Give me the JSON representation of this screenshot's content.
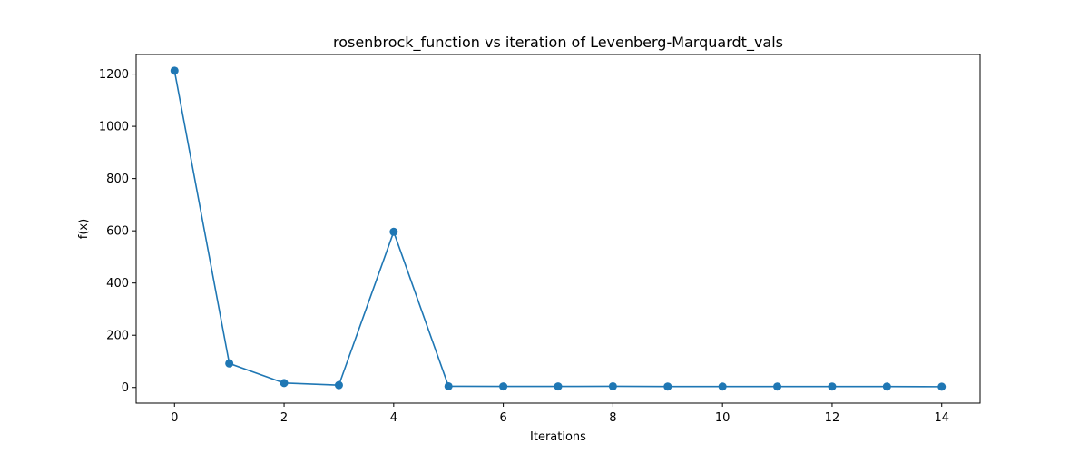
{
  "chart_data": {
    "type": "line",
    "title": "rosenbrock_function vs iteration of Levenberg-Marquardt_vals",
    "xlabel": "Iterations",
    "ylabel": "f(x)",
    "x": [
      0,
      1,
      2,
      3,
      4,
      5,
      6,
      7,
      8,
      9,
      10,
      11,
      12,
      13,
      14
    ],
    "series": [
      {
        "values": [
          1213,
          92,
          17,
          9,
          596,
          4.5,
          4,
          4,
          4.5,
          3.5,
          3.5,
          3.5,
          3.5,
          3.5,
          3
        ]
      }
    ],
    "xlim": [
      -0.7,
      14.7
    ],
    "ylim": [
      -60,
      1275
    ],
    "xticks": [
      0,
      2,
      4,
      6,
      8,
      10,
      12,
      14
    ],
    "yticks": [
      0,
      200,
      400,
      600,
      800,
      1000,
      1200
    ],
    "grid": false,
    "markers": true,
    "line_color": "#1f77b4"
  }
}
